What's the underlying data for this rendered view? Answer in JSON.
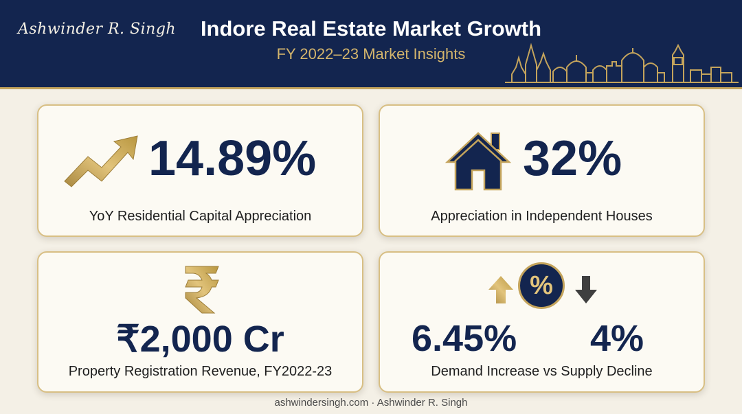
{
  "header": {
    "brand": "Ashwinder R. Singh",
    "title": "Indore Real Estate Market Growth",
    "subtitle": "FY 2022–23 Market Insights",
    "skyline_icon": "city-skyline-icon"
  },
  "cards": [
    {
      "value": "14.89%",
      "label": "YoY Residential Capital Appreciation",
      "icon": "trending-up-arrow-icon"
    },
    {
      "value": "32%",
      "label": "Appreciation in Independent Houses",
      "icon": "house-icon"
    },
    {
      "value": "₹2,000 Cr",
      "label": "Property Registration Revenue, FY2022-23",
      "icon": "rupee-icon"
    },
    {
      "value_demand": "6.45%",
      "value_supply": "4%",
      "percent_symbol": "%",
      "label": "Demand Increase vs Supply Decline",
      "icons": [
        "arrow-up-icon",
        "percent-badge-icon",
        "arrow-down-icon"
      ]
    }
  ],
  "footer": "ashwindersingh.com · Ashwinder R. Singh",
  "colors": {
    "navy": "#13254f",
    "gold": "#c4a45c",
    "background": "#f4f0e6",
    "card": "#fcfaf3",
    "down_arrow": "#3f3f3f"
  }
}
